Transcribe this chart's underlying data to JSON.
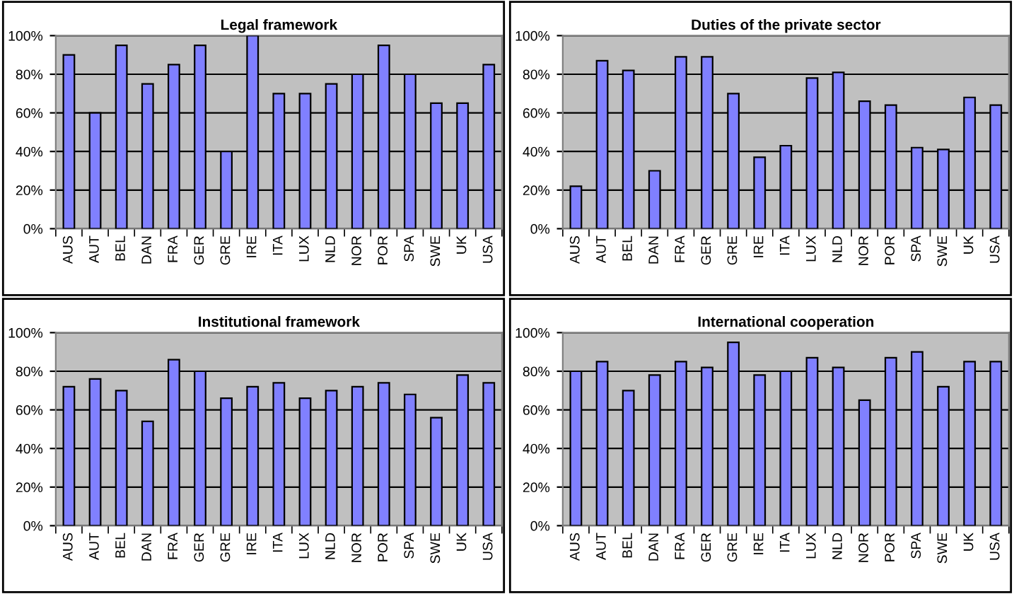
{
  "chart_data": [
    {
      "type": "bar",
      "title": "Legal framework",
      "categories": [
        "AUS",
        "AUT",
        "BEL",
        "DAN",
        "FRA",
        "GER",
        "GRE",
        "IRE",
        "ITA",
        "LUX",
        "NLD",
        "NOR",
        "POR",
        "SPA",
        "SWE",
        "UK",
        "USA"
      ],
      "values": [
        90,
        60,
        95,
        75,
        85,
        95,
        40,
        100,
        70,
        70,
        75,
        80,
        95,
        80,
        65,
        65,
        85
      ],
      "color": "#8080ff",
      "ylim": [
        0,
        100
      ],
      "yticks": [
        {
          "value": 0,
          "label": "0%"
        },
        {
          "value": 20,
          "label": "20%"
        },
        {
          "value": 40,
          "label": "40%"
        },
        {
          "value": 60,
          "label": "60%"
        },
        {
          "value": 80,
          "label": "80%"
        },
        {
          "value": 100,
          "label": "100%"
        }
      ],
      "grid": "y"
    },
    {
      "type": "bar",
      "title": "Duties of the private sector",
      "categories": [
        "AUS",
        "AUT",
        "BEL",
        "DAN",
        "FRA",
        "GER",
        "GRE",
        "IRE",
        "ITA",
        "LUX",
        "NLD",
        "NOR",
        "POR",
        "SPA",
        "SWE",
        "UK",
        "USA"
      ],
      "values": [
        22,
        87,
        82,
        30,
        89,
        89,
        70,
        37,
        43,
        78,
        81,
        66,
        64,
        42,
        41,
        68,
        64
      ],
      "color": "#8080ff",
      "ylim": [
        0,
        100
      ],
      "yticks": [
        {
          "value": 0,
          "label": "0%"
        },
        {
          "value": 20,
          "label": "20%"
        },
        {
          "value": 40,
          "label": "40%"
        },
        {
          "value": 60,
          "label": "60%"
        },
        {
          "value": 80,
          "label": "80%"
        },
        {
          "value": 100,
          "label": "100%"
        }
      ],
      "grid": "y"
    },
    {
      "type": "bar",
      "title": "Institutional framework",
      "categories": [
        "AUS",
        "AUT",
        "BEL",
        "DAN",
        "FRA",
        "GER",
        "GRE",
        "IRE",
        "ITA",
        "LUX",
        "NLD",
        "NOR",
        "POR",
        "SPA",
        "SWE",
        "UK",
        "USA"
      ],
      "values": [
        72,
        76,
        70,
        54,
        86,
        80,
        66,
        72,
        74,
        66,
        70,
        72,
        74,
        68,
        56,
        78,
        74
      ],
      "color": "#8080ff",
      "ylim": [
        0,
        100
      ],
      "yticks": [
        {
          "value": 0,
          "label": "0%"
        },
        {
          "value": 20,
          "label": "20%"
        },
        {
          "value": 40,
          "label": "40%"
        },
        {
          "value": 60,
          "label": "60%"
        },
        {
          "value": 80,
          "label": "80%"
        },
        {
          "value": 100,
          "label": "100%"
        }
      ],
      "grid": "y"
    },
    {
      "type": "bar",
      "title": "International cooperation",
      "categories": [
        "AUS",
        "AUT",
        "BEL",
        "DAN",
        "FRA",
        "GER",
        "GRE",
        "IRE",
        "ITA",
        "LUX",
        "NLD",
        "NOR",
        "POR",
        "SPA",
        "SWE",
        "UK",
        "USA"
      ],
      "values": [
        80,
        85,
        70,
        78,
        85,
        82,
        95,
        78,
        80,
        87,
        82,
        65,
        87,
        90,
        72,
        85,
        85
      ],
      "color": "#8080ff",
      "ylim": [
        0,
        100
      ],
      "yticks": [
        {
          "value": 0,
          "label": "0%"
        },
        {
          "value": 20,
          "label": "20%"
        },
        {
          "value": 40,
          "label": "40%"
        },
        {
          "value": 60,
          "label": "60%"
        },
        {
          "value": 80,
          "label": "80%"
        },
        {
          "value": 100,
          "label": "100%"
        }
      ],
      "grid": "y"
    }
  ]
}
